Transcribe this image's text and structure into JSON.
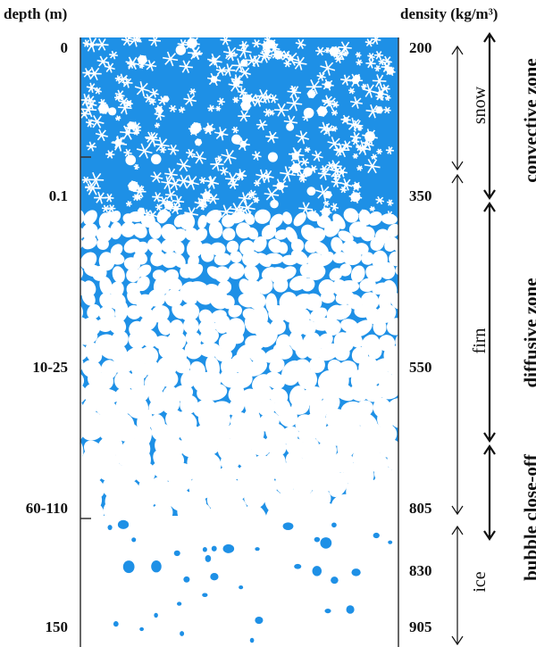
{
  "headers": {
    "depth": "depth (m)",
    "density": "density (kg/m³)"
  },
  "depth_ticks": [
    "0",
    "0.1",
    "10-25",
    "60-110",
    "150"
  ],
  "density_ticks": [
    "200",
    "350",
    "550",
    "805",
    "830",
    "905"
  ],
  "layers": {
    "snow": "snow",
    "firn": "firn",
    "ice": "ice"
  },
  "zones": {
    "convective": "convective zone",
    "diffusive": "diffusive zone",
    "bubble": "bubble close-off"
  },
  "colors": {
    "ice_blue": "#1e90e6",
    "grain_white": "#ffffff",
    "border": "#333333"
  }
}
